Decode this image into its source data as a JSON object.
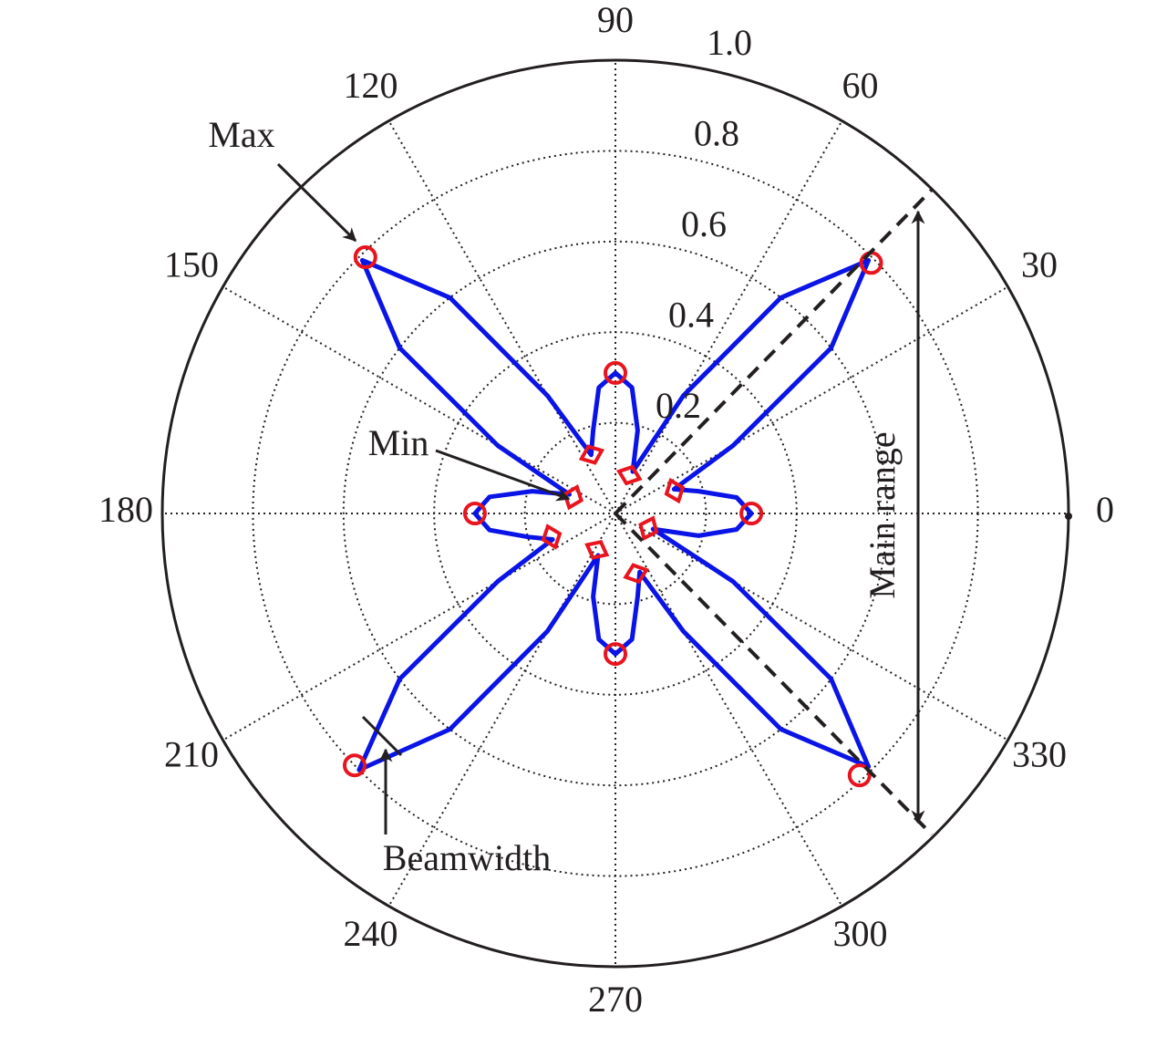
{
  "chart_data": {
    "type": "polar",
    "theta": [
      0,
      7.5,
      15,
      22.5,
      30,
      37.5,
      45,
      52.5,
      60,
      67.5,
      75,
      82.5,
      90,
      97.5,
      105,
      112.5,
      120,
      127.5,
      135,
      142.5,
      150,
      157.5,
      165,
      172.5,
      180,
      187.5,
      195,
      202.5,
      210,
      217.5,
      225,
      232.5,
      240,
      247.5,
      255,
      262.5,
      270,
      277.5,
      285,
      292.5,
      300,
      307.5,
      315,
      322.5,
      330,
      337.5,
      345,
      352.5
    ],
    "r": [
      0.3,
      0.27,
      0.19,
      0.14,
      0.3,
      0.6,
      0.79,
      0.6,
      0.3,
      0.1,
      0.19,
      0.28,
      0.31,
      0.28,
      0.19,
      0.14,
      0.3,
      0.6,
      0.79,
      0.6,
      0.3,
      0.11,
      0.19,
      0.28,
      0.31,
      0.28,
      0.2,
      0.15,
      0.3,
      0.6,
      0.8,
      0.6,
      0.3,
      0.1,
      0.19,
      0.28,
      0.31,
      0.28,
      0.19,
      0.14,
      0.3,
      0.6,
      0.79,
      0.6,
      0.3,
      0.09,
      0.19,
      0.27
    ],
    "color": "#0a14e6",
    "rlim": [
      0,
      1
    ],
    "rticks": [
      0.2,
      0.4,
      0.6,
      0.8,
      {
        "value": 1,
        "label": "1.0"
      }
    ],
    "thetaticks": [
      0,
      30,
      60,
      90,
      120,
      150,
      180,
      210,
      240,
      270,
      300,
      330
    ],
    "grid": true,
    "max_points": {
      "color": "#e8141e",
      "theta": [
        44.4,
        134.3,
        224,
        313,
        0,
        90,
        180,
        270
      ],
      "r": [
        0.79,
        0.79,
        0.8,
        0.79,
        0.3,
        0.31,
        0.31,
        0.31
      ]
    },
    "min_points": {
      "color": "#e8141e",
      "theta": [
        21,
        70,
        112,
        159,
        200,
        243,
        289,
        336
      ],
      "r": [
        0.14,
        0.09,
        0.14,
        0.1,
        0.15,
        0.09,
        0.14,
        0.08
      ]
    },
    "annotations": {
      "max": "Max",
      "min": "Min",
      "beamwidth": "Beamwidth",
      "main_range": "Main range"
    }
  }
}
